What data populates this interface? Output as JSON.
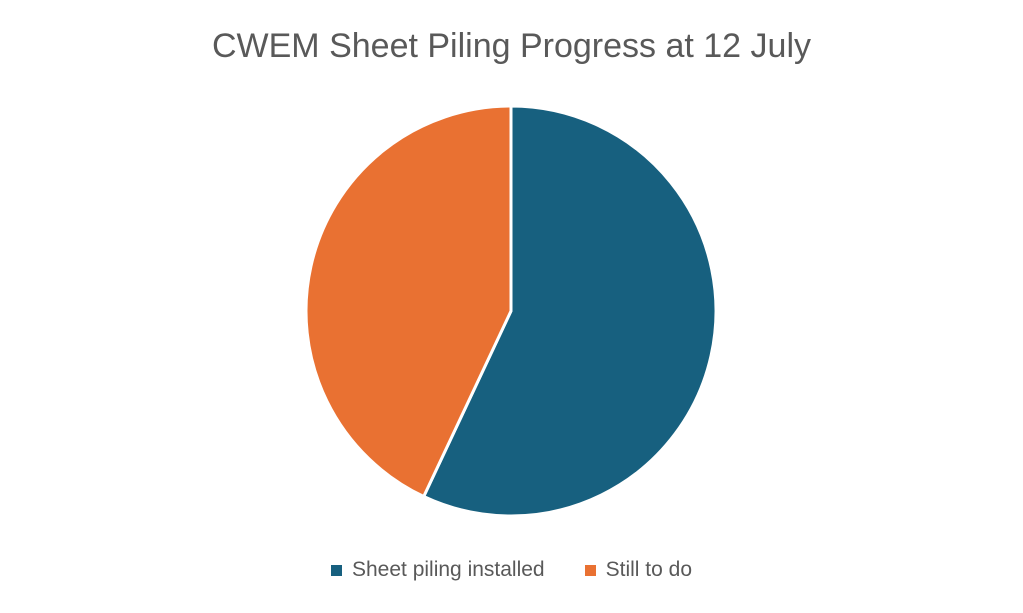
{
  "chart_data": {
    "type": "pie",
    "title": "CWEM Sheet Piling Progress at 12 July",
    "categories": [
      "Sheet piling installed",
      "Still to do"
    ],
    "values": [
      57,
      43
    ],
    "colors": [
      "#17607F",
      "#E97132"
    ],
    "start_angle_deg": 0,
    "direction": "clockwise",
    "legend": "bottom"
  }
}
